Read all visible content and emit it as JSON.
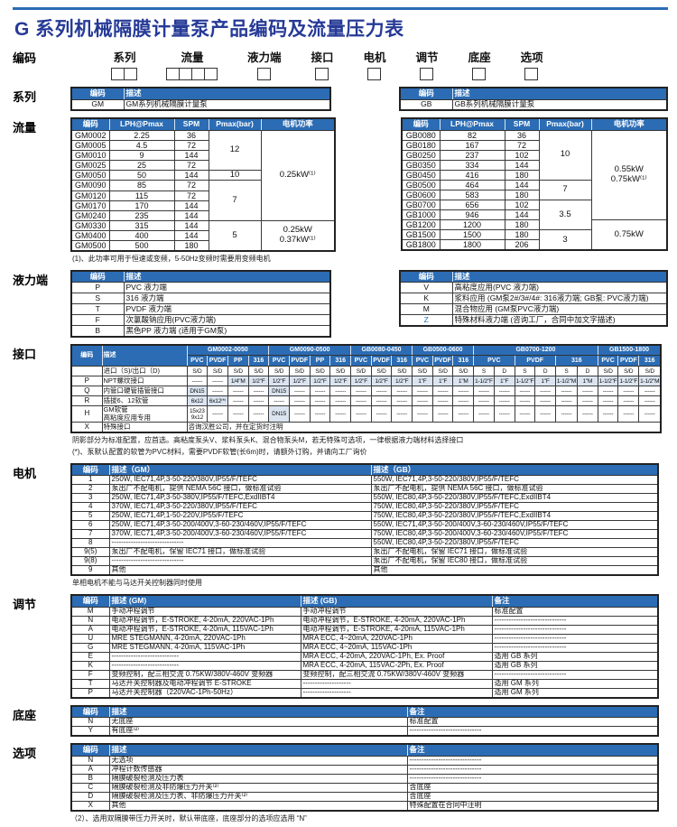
{
  "colors": {
    "header_bg": "#2b6cb4",
    "shade": "#dbe5f1",
    "title": "#263a96",
    "rule": "#2b6cb4"
  },
  "title": "G 系列机械隔膜计量泵产品编码及流量压力表",
  "coding": {
    "section_label": "编码",
    "fields": [
      {
        "label": "系列",
        "boxes": 2
      },
      {
        "label": "流量",
        "boxes": 4
      },
      {
        "label": "液力端",
        "boxes": 1
      },
      {
        "label": "接口",
        "boxes": 1
      },
      {
        "label": "电机",
        "boxes": 1
      },
      {
        "label": "调节",
        "boxes": 1
      },
      {
        "label": "底座",
        "boxes": 1
      },
      {
        "label": "选项",
        "boxes": 1
      }
    ]
  },
  "series": {
    "section_label": "系列",
    "tables": [
      {
        "headers": [
          "编码",
          "描述"
        ],
        "rows": [
          [
            "GM",
            "GM系列机械隔膜计量泵"
          ]
        ]
      },
      {
        "headers": [
          "编码",
          "描述"
        ],
        "rows": [
          [
            "GB",
            "GB系列机械隔膜计量泵"
          ]
        ]
      }
    ]
  },
  "flow": {
    "section_label": "流量",
    "headers": [
      "编码",
      "LPH@Pmax",
      "SPM",
      "Pmax(bar)",
      "电机功率"
    ],
    "tables": [
      {
        "rows": [
          [
            "GM0002",
            "2.25",
            "36"
          ],
          [
            "GM0005",
            "4.5",
            "72"
          ],
          [
            "GM0010",
            "9",
            "144"
          ],
          [
            "GM0025",
            "25",
            "72"
          ],
          [
            "GM0050",
            "50",
            "144"
          ],
          [
            "GM0090",
            "85",
            "72"
          ],
          [
            "GM0120",
            "115",
            "72"
          ],
          [
            "GM0170",
            "170",
            "144"
          ],
          [
            "GM0240",
            "235",
            "144"
          ],
          [
            "GM0330",
            "315",
            "144"
          ],
          [
            "GM0400",
            "400",
            "144"
          ],
          [
            "GM0500",
            "500",
            "180"
          ]
        ],
        "pmax_groups": [
          {
            "value": [
              "12"
            ],
            "span": 4
          },
          {
            "value": [
              "10"
            ],
            "span": 1
          },
          {
            "value": [
              "7"
            ],
            "span": 4
          },
          {
            "value": [
              "5"
            ],
            "span": 3
          }
        ],
        "power_groups": [
          {
            "value": [
              "0.25kW⁽¹⁾"
            ],
            "span": 9
          },
          {
            "value": [
              "0.25kW",
              "0.37kW⁽¹⁾"
            ],
            "span": 3
          }
        ]
      },
      {
        "rows": [
          [
            "GB0080",
            "82",
            "36"
          ],
          [
            "GB0180",
            "167",
            "72"
          ],
          [
            "GB0250",
            "237",
            "102"
          ],
          [
            "GB0350",
            "334",
            "144"
          ],
          [
            "GB0450",
            "416",
            "180"
          ],
          [
            "GB0500",
            "464",
            "144"
          ],
          [
            "GB0600",
            "583",
            "180"
          ],
          [
            "GB0700",
            "656",
            "102"
          ],
          [
            "GB1000",
            "946",
            "144"
          ],
          [
            "GB1200",
            "1200",
            "180"
          ],
          [
            "GB1500",
            "1500",
            "180"
          ],
          [
            "GB1800",
            "1800",
            "206"
          ]
        ],
        "pmax_groups": [
          {
            "value": [
              "10"
            ],
            "span": 5
          },
          {
            "value": [
              "7"
            ],
            "span": 2
          },
          {
            "value": [
              "3.5"
            ],
            "span": 3
          },
          {
            "value": [
              "3"
            ],
            "span": 2
          }
        ],
        "power_groups": [
          {
            "value": [
              "0.55kW",
              "0.75kW⁽¹⁾"
            ],
            "span": 9
          },
          {
            "value": [
              "0.75kW"
            ],
            "span": 3
          }
        ]
      }
    ],
    "footnote": "(1)、此功率可用于恒速或变频，5-50Hz变频时需要用变频电机"
  },
  "hydraulic": {
    "section_label": "液力端",
    "tables": [
      {
        "headers": [
          "编码",
          "描述"
        ],
        "rows": [
          [
            "P",
            "PVC 液力端"
          ],
          [
            "S",
            "316 液力端"
          ],
          [
            "T",
            "PVDF 液力端"
          ],
          [
            "F",
            "次氯酸钠应用(PVC液力端)"
          ],
          [
            "B",
            "黑色PP 液力端 (适用于GM泵)"
          ]
        ],
        "blue_codes": []
      },
      {
        "headers": [
          "编码",
          "描述"
        ],
        "rows": [
          [
            "V",
            "高粘度应用(PVC 液力端)"
          ],
          [
            "K",
            "浆料应用 (GM泵2#/3#/4#: 316液力端; GB泵: PVC液力端)"
          ],
          [
            "M",
            "混合物应用 (GM泵PVC液力端)"
          ],
          [
            "Z",
            "特殊材料液力端 (咨询工厂，合同中加文字描述)"
          ]
        ],
        "blue_codes": [
          "Z"
        ]
      }
    ]
  },
  "interface": {
    "section_label": "接口",
    "code_header": "编码",
    "desc_header": "描述",
    "groups": [
      {
        "label": "GM0002-0050",
        "materials": [
          {
            "name": "PVC",
            "sd": [
              "S/D"
            ]
          },
          {
            "name": "PVDF",
            "sd": [
              "S/D"
            ]
          },
          {
            "name": "PP",
            "sd": [
              "S/D"
            ]
          },
          {
            "name": "316",
            "sd": [
              "S/D"
            ]
          }
        ]
      },
      {
        "label": "GM0090-0500",
        "materials": [
          {
            "name": "PVC",
            "sd": [
              "S/D"
            ]
          },
          {
            "name": "PVDF",
            "sd": [
              "S/D"
            ]
          },
          {
            "name": "PP",
            "sd": [
              "S/D"
            ]
          },
          {
            "name": "316",
            "sd": [
              "S/D"
            ]
          }
        ]
      },
      {
        "label": "GB0080-0450",
        "materials": [
          {
            "name": "PVC",
            "sd": [
              "S/D"
            ]
          },
          {
            "name": "PVDF",
            "sd": [
              "S/D"
            ]
          },
          {
            "name": "316",
            "sd": [
              "S/D"
            ]
          }
        ]
      },
      {
        "label": "GB0500-0600",
        "materials": [
          {
            "name": "PVC",
            "sd": [
              "S/D"
            ]
          },
          {
            "name": "PVDF",
            "sd": [
              "S/D"
            ]
          },
          {
            "name": "316",
            "sd": [
              "S/D"
            ]
          }
        ]
      },
      {
        "label": "GB0700-1200",
        "materials": [
          {
            "name": "PVC",
            "sd": [
              "S",
              "D"
            ]
          },
          {
            "name": "PVDF",
            "sd": [
              "S",
              "D"
            ]
          },
          {
            "name": "316",
            "sd": [
              "S",
              "D"
            ]
          }
        ]
      },
      {
        "label": "GB1500-1800",
        "materials": [
          {
            "name": "PVC",
            "sd": [
              "S/D"
            ]
          },
          {
            "name": "PVDF",
            "sd": [
              "S/D"
            ]
          },
          {
            "name": "316",
            "sd": [
              "S/D"
            ]
          }
        ]
      }
    ],
    "sd_row_label": "进口（S)/出口（D)",
    "rows": [
      {
        "code": "P",
        "desc": "NPT螺纹接口",
        "cells": [
          "------",
          "------",
          "!1/4\"M",
          "!1/2\"F",
          "!1/2\"F",
          "!1/2\"F",
          "!1/2\"F",
          "!1/2\"F",
          "!1/2\"F",
          "!1/2\"F",
          "!1/2\"F",
          "!1\"F",
          "!1\"F",
          "!1\"M",
          "!1-1/2\"F",
          "!1\"F",
          "!1-1/2\"F",
          "!1\"F",
          "!1-1/2\"M",
          "!1\"M",
          "!1-1/2\"F",
          "!1-1/2\"F",
          "!1-1/2\"M"
        ]
      },
      {
        "code": "Q",
        "desc": "内管口硬管插管接口",
        "cells": [
          "!DN15",
          "------",
          "------",
          "------",
          "!DN15",
          "------",
          "------",
          "------",
          "------",
          "------",
          "------",
          "------",
          "------",
          "------",
          "------",
          "------",
          "------",
          "------",
          "------",
          "------",
          "------",
          "------",
          "------"
        ]
      },
      {
        "code": "R",
        "desc": "插拔6、12软管",
        "cells": [
          "!6x12",
          "!6x12⁽*⁾",
          "------",
          "------",
          "------",
          "------",
          "------",
          "------",
          "------",
          "------",
          "------",
          "------",
          "------",
          "------",
          "------",
          "------",
          "------",
          "------",
          "------",
          "------",
          "------",
          "------",
          "------"
        ]
      },
      {
        "code": "H",
        "desc": "GM软管\n高粘度应用专用",
        "cells": [
          "15x23\n9x12",
          "------",
          "------",
          "------",
          "!DN15",
          "------",
          "------",
          "------",
          "------",
          "------",
          "------",
          "------",
          "------",
          "------",
          "------",
          "------",
          "------",
          "------",
          "------",
          "------",
          "------",
          "------",
          "------"
        ]
      }
    ],
    "special_row": {
      "code": "X",
      "desc": "特殊接口",
      "value": "咨询汉胜公司，并在定货时注明"
    },
    "footnotes": [
      "阴影部分为标准配置，应首选。高粘度泵头V、浆料泵头K、混合物泵头M，若无特殊可选项，一律根据液力端材料选择接口",
      "(*)、泵默认配置的软管为PVC材料，需要PVDF软管(长6m)时，请额外订购，并请向工厂询价"
    ]
  },
  "motor": {
    "section_label": "电机",
    "headers": [
      "编码",
      "描述（GM）",
      "描述（GB）"
    ],
    "rows": [
      [
        "1",
        "250W, IEC71,4P,3-50-220/380V,IP55/F/TEFC",
        "550W, IEC71,4P,3-50-220/380V,IP55/F/TEFC"
      ],
      [
        "2",
        "泵出厂不配电机，提供 NEMA 56C 接口，做标准试验",
        "泵出厂不配电机，提供 NEMA 56C 接口，做标准试验"
      ],
      [
        "3",
        "250W, IEC71,4P,3-50-380V,IP55/F/TEFC,ExdIIBT4",
        "550W, IEC80,4P,3-50-220/380V,IP55/F/TEFC,ExdIIBT4"
      ],
      [
        "4",
        "370W, IEC71,4P,3-50-220/380V,IP55/F/TEFC",
        "750W, IEC80,4P,3-50-220/380V,IP55/F/TEFC"
      ],
      [
        "5",
        "250W, IEC71,4P,1-50-220V,IP55/F/TEFC",
        "750W, IEC80,4P,3-50-220/380V,IP55/F/TEFC,ExdIIBT4"
      ],
      [
        "6",
        "250W, IEC71,4P,3-50-200/400V,3-60-230/460V,IP55/F/TEFC",
        "550W, IEC71,4P,3-50-200/400V,3-60-230/460V,IP55/F/TEFC"
      ],
      [
        "7",
        "370W, IEC71,4P,3-50-200/400V,3-60-230/460V,IP55/F/TEFC",
        "750W, IEC80,4P,3-50-200/400V,3-60-230/460V,IP55/F/TEFC"
      ],
      [
        "8",
        "------------------------------",
        "550W, IEC80,4P,3-50-220/380V,IP55/F/TEFC"
      ],
      [
        "9(5)",
        "泵出厂不配电机，保留 IEC71 接口，做标准试验",
        "泵出厂不配电机，保留 IEC71 接口，做标准试验"
      ],
      [
        "9(8)",
        "------------------------------",
        "泵出厂不配电机，保留 IEC80 接口，做标准试验"
      ],
      [
        "9",
        "其他",
        "其他"
      ]
    ],
    "footnote": "单相电机不能与马达开关控制器同时使用"
  },
  "adjust": {
    "section_label": "调节",
    "headers": [
      "编码",
      "描述 (GM)",
      "描述 (GB)",
      "备注"
    ],
    "rows": [
      [
        "M",
        "手动冲程调节",
        "手动冲程调节",
        "标准配置"
      ],
      [
        "N",
        "电动冲程调节，E-STROKE, 4-20mA, 220VAC-1Ph",
        "电动冲程调节，E-STROKE, 4-20mA, 220VAC-1Ph",
        "------------------------------"
      ],
      [
        "A",
        "电动冲程调节，E-STROKE, 4-20mA, 115VAC-1Ph",
        "电动冲程调节，E-STROKE, 4-20mA, 115VAC-1Ph",
        "------------------------------"
      ],
      [
        "U",
        "MRE STEGMANN, 4-20mA, 220VAC-1Ph",
        "MRA ECC, 4~20mA, 220VAC-1Ph",
        "------------------------------"
      ],
      [
        "G",
        "MRE STEGMANN, 4-20mA, 115VAC-1Ph",
        "MRA ECC, 4~20mA, 115VAC-1Ph",
        "------------------------------"
      ],
      [
        "E",
        "----------------------------",
        "MRA ECC, 4-20mA, 220VAC-1Ph, Ex. Proof",
        "适用 GB 系列"
      ],
      [
        "K",
        "----------------------------",
        "MRA ECC, 4-20mA, 115VAC-2Ph, Ex. Proof",
        "适用 GB 系列"
      ],
      [
        "F",
        "变频控制，配三相交流 0.75KW/380V-460V 变频器",
        "变频控制，配三相交流 0.75KW/380V-460V 变频器",
        "------------------------------"
      ],
      [
        "T",
        "马达开关控制器及电动冲程调节 E-STROKE",
        "--------------------",
        "适用 GM 系列"
      ],
      [
        "P",
        "马达开关控制器（220VAC-1Ph-50Hz）",
        "--------------------",
        "适用 GM 系列"
      ]
    ]
  },
  "base": {
    "section_label": "底座",
    "headers": [
      "编码",
      "描述",
      "备注"
    ],
    "rows": [
      [
        "N",
        "无底座",
        "标准配置"
      ],
      [
        "Y",
        "有底座⁽²⁾",
        "------------------------------"
      ]
    ]
  },
  "options": {
    "section_label": "选项",
    "headers": [
      "编码",
      "描述",
      "备注"
    ],
    "rows": [
      [
        "N",
        "无选项",
        "------------------------------"
      ],
      [
        "A",
        "冲程计数传感器",
        "------------------------------"
      ],
      [
        "B",
        "隔膜破裂检测及压力表",
        "------------------------------"
      ],
      [
        "C",
        "隔膜破裂检测及非防爆压力开关⁽²⁾",
        "含底座"
      ],
      [
        "D",
        "隔膜破裂检测及压力表、非防爆压力开关⁽²⁾",
        "含底座"
      ],
      [
        "X",
        "其他",
        "特殊配置在合同中注明"
      ]
    ]
  },
  "final_footnote": "（2）、选用双隔膜带压力开关时，默认带底座，底座部分的选项应选用 “N”"
}
